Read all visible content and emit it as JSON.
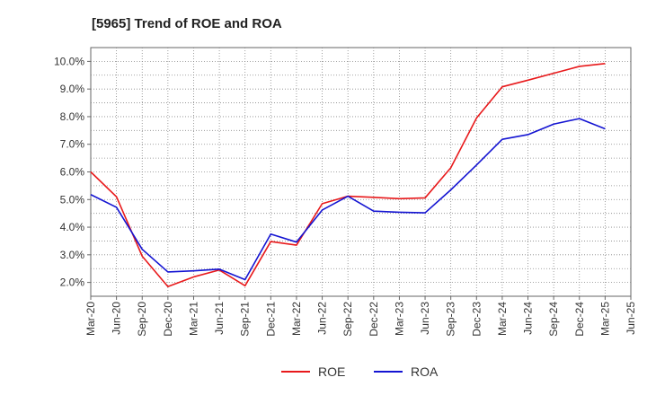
{
  "chart_data": {
    "type": "line",
    "title": "[5965]  Trend of ROE and ROA",
    "xlabel": "",
    "ylabel": "",
    "x": [
      "Mar-20",
      "Jun-20",
      "Sep-20",
      "Dec-20",
      "Mar-21",
      "Jun-21",
      "Sep-21",
      "Dec-21",
      "Mar-22",
      "Jun-22",
      "Sep-22",
      "Dec-22",
      "Mar-23",
      "Jun-23",
      "Sep-23",
      "Dec-23",
      "Mar-24",
      "Jun-24",
      "Sep-24",
      "Dec-24",
      "Mar-25",
      "Jun-25"
    ],
    "ylim": [
      1.5,
      10.5
    ],
    "yticks": [
      2.0,
      3.0,
      4.0,
      5.0,
      6.0,
      7.0,
      8.0,
      9.0,
      10.0
    ],
    "ytick_labels": [
      "2.0%",
      "3.0%",
      "4.0%",
      "5.0%",
      "6.0%",
      "7.0%",
      "8.0%",
      "9.0%",
      "10.0%"
    ],
    "grid": true,
    "legend_position": "bottom-center",
    "series": [
      {
        "name": "ROE",
        "color": "#e8191b",
        "values": [
          6.0,
          5.1,
          2.95,
          1.85,
          2.2,
          2.45,
          1.88,
          3.48,
          3.35,
          4.85,
          5.12,
          5.08,
          5.03,
          5.06,
          6.15,
          7.95,
          9.08,
          9.32,
          9.57,
          9.82,
          9.92,
          null
        ]
      },
      {
        "name": "ROA",
        "color": "#1414d2",
        "values": [
          5.18,
          4.72,
          3.2,
          2.38,
          2.42,
          2.48,
          2.1,
          3.75,
          3.46,
          4.62,
          5.12,
          4.58,
          4.54,
          4.52,
          5.35,
          6.25,
          7.18,
          7.35,
          7.73,
          7.93,
          7.56,
          null
        ]
      }
    ]
  }
}
